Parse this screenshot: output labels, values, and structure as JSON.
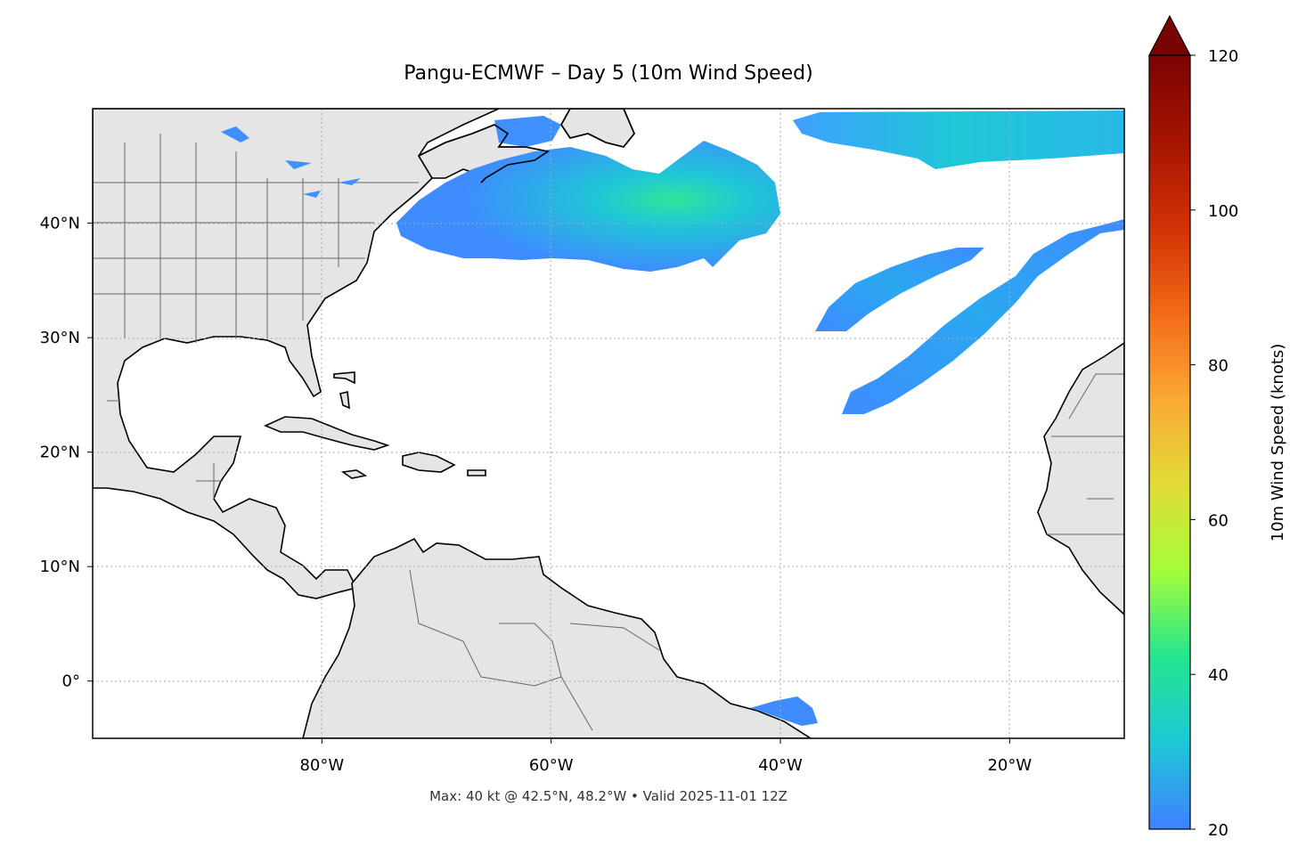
{
  "title": "Pangu-ECMWF – Day 5 (10m Wind Speed)",
  "footer": "Max: 40 kt @ 42.5°N, 48.2°W • Valid 2025-11-01 12Z",
  "map": {
    "lon_range": [
      -100,
      -10
    ],
    "lat_range": [
      -5,
      50
    ],
    "land_color": "#e5e5e5",
    "ocean_color": "#ffffff",
    "gridlines": true,
    "lon_ticks": [
      {
        "lon": -80,
        "label": "80°W"
      },
      {
        "lon": -60,
        "label": "60°W"
      },
      {
        "lon": -40,
        "label": "40°W"
      },
      {
        "lon": -20,
        "label": "20°W"
      }
    ],
    "lat_ticks": [
      {
        "lat": 40,
        "label": "40°N"
      },
      {
        "lat": 30,
        "label": "30°N"
      },
      {
        "lat": 20,
        "label": "20°N"
      },
      {
        "lat": 10,
        "label": "10°N"
      },
      {
        "lat": 0,
        "label": "0°"
      }
    ]
  },
  "colorbar": {
    "label": "10m Wind Speed (knots)",
    "min": 20,
    "max": 120,
    "ticks": [
      20,
      40,
      60,
      80,
      100,
      120
    ],
    "extend": "max",
    "colors": [
      "#3e80ff",
      "#1ec8d6",
      "#24e58f",
      "#a4fd3b",
      "#e1dc37",
      "#fba935",
      "#f26a17",
      "#d23105",
      "#a51401",
      "#7a0403"
    ]
  },
  "wind_regions": [
    {
      "name": "northwest-atlantic",
      "max_kt": 40,
      "center_lat": 42.5,
      "center_lon": -48.2
    },
    {
      "name": "northeast-atlantic-band",
      "max_kt": 28
    },
    {
      "name": "central-atlantic-streak-north",
      "max_kt": 24
    },
    {
      "name": "central-atlantic-streak-south",
      "max_kt": 26
    },
    {
      "name": "equatorial-patch",
      "max_kt": 22
    }
  ]
}
